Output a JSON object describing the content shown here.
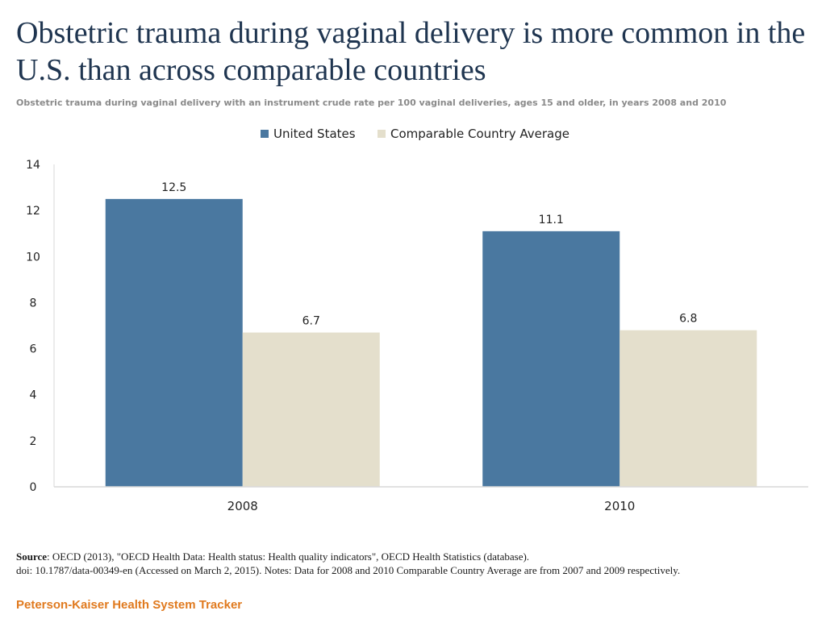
{
  "header": {
    "title": "Obstetric trauma during vaginal delivery is more common in the U.S. than across comparable countries",
    "subtitle": "Obstetric trauma during vaginal delivery with an instrument crude rate per 100 vaginal deliveries, ages 15 and older, in years 2008 and 2010"
  },
  "chart_data": {
    "type": "bar",
    "title": "Obstetric trauma during vaginal delivery is more common in the U.S. than across comparable countries",
    "categories": [
      "2008",
      "2010"
    ],
    "series": [
      {
        "name": "United States",
        "values": [
          12.5,
          11.1
        ],
        "labels": [
          "12.5",
          "11.1"
        ],
        "color": "#4a78a0"
      },
      {
        "name": "Comparable Country Average",
        "values": [
          6.7,
          6.8
        ],
        "labels": [
          "6.7",
          "6.8"
        ],
        "color": "#e4dfcc"
      }
    ],
    "ylim": [
      0,
      14
    ],
    "yticks": [
      0,
      2,
      4,
      6,
      8,
      10,
      12,
      14
    ],
    "xlabel": "",
    "ylabel": "",
    "grid": false,
    "legend_position": "top-center"
  },
  "footer": {
    "source_label": "Source",
    "source_text": ": OECD (2013), \"OECD Health Data: Health status: Health quality  indicators\", OECD Health Statistics (database).",
    "doi_text": "doi: 10.1787/data-00349-en (Accessed on March 2,  2015). Notes: Data for 2008 and 2010 Comparable Country Average are from 2007 and 2009 respectively.",
    "brand": "Peterson-Kaiser Health System Tracker"
  },
  "colors": {
    "title": "#1f3550",
    "brand": "#e07a1f",
    "axis": "#d9d9d9"
  }
}
